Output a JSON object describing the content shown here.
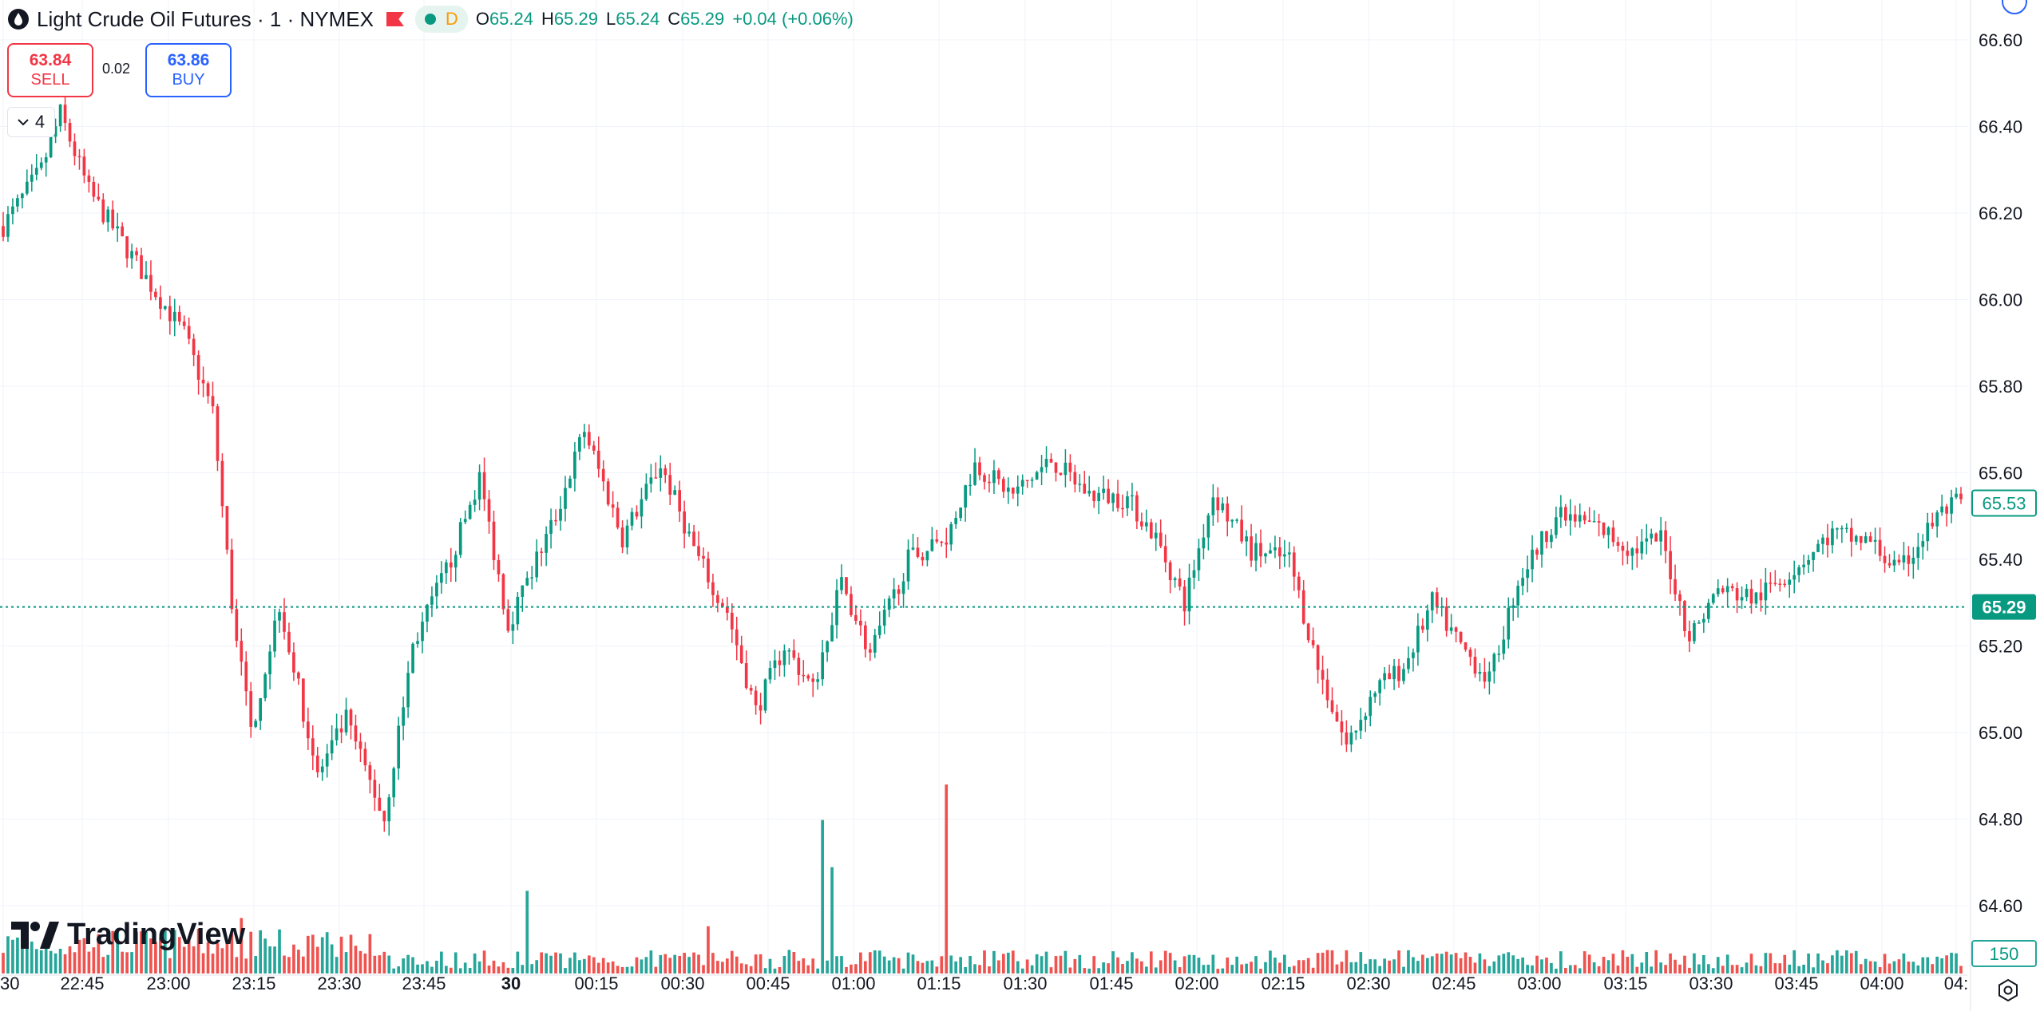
{
  "header": {
    "symbol_title": "Light Crude Oil Futures · 1 · NYMEX",
    "interval_badge": "D",
    "ohlc": {
      "o_label": "O",
      "o_value": "65.24",
      "h_label": "H",
      "h_value": "65.29",
      "l_label": "L",
      "l_value": "65.24",
      "c_label": "C",
      "c_value": "65.29",
      "change": "+0.04 (+0.06%)"
    }
  },
  "trade": {
    "sell_price": "63.84",
    "sell_label": "SELL",
    "spread": "0.02",
    "buy_price": "63.86",
    "buy_label": "BUY"
  },
  "indicators_toggle": {
    "count": "4"
  },
  "branding": {
    "logo_text": "TradingView"
  },
  "colors": {
    "up": "#089981",
    "down": "#f23645",
    "volume_up": "#26a69a",
    "volume_down": "#ef5350",
    "grid": "#f0f3fa",
    "accent": "#2962ff"
  },
  "chart_data": {
    "type": "candlestick",
    "symbol": "Light Crude Oil Futures",
    "interval": "1",
    "exchange": "NYMEX",
    "price_axis": {
      "ticks": [
        "66.60",
        "66.40",
        "66.20",
        "66.00",
        "65.80",
        "65.60",
        "65.40",
        "65.20",
        "65.00",
        "64.80",
        "64.60"
      ],
      "range": [
        64.55,
        66.65
      ]
    },
    "time_axis": {
      "ticks": [
        "30",
        "22:45",
        "23:00",
        "23:15",
        "23:30",
        "23:45",
        "30",
        "00:15",
        "00:30",
        "00:45",
        "01:00",
        "01:15",
        "01:30",
        "01:45",
        "02:00",
        "02:15",
        "02:30",
        "02:45",
        "03:00",
        "03:15",
        "03:30",
        "03:45",
        "04:00",
        "04:"
      ]
    },
    "last_price": {
      "label": "65.29",
      "value": 65.29
    },
    "prev_price_marker": {
      "label": "65.53",
      "value": 65.53
    },
    "volume_marker": {
      "label": "150",
      "value": 150
    },
    "grid": true,
    "keypoints_close": [
      {
        "t": 0,
        "p": 66.17
      },
      {
        "t": 8,
        "p": 66.3
      },
      {
        "t": 12,
        "p": 66.43
      },
      {
        "t": 18,
        "p": 66.25
      },
      {
        "t": 30,
        "p": 66.05
      },
      {
        "t": 38,
        "p": 65.92
      },
      {
        "t": 44,
        "p": 65.74
      },
      {
        "t": 48,
        "p": 65.3
      },
      {
        "t": 52,
        "p": 65.0
      },
      {
        "t": 58,
        "p": 65.3
      },
      {
        "t": 66,
        "p": 64.9
      },
      {
        "t": 72,
        "p": 65.03
      },
      {
        "t": 80,
        "p": 64.8
      },
      {
        "t": 86,
        "p": 65.2
      },
      {
        "t": 94,
        "p": 65.4
      },
      {
        "t": 100,
        "p": 65.59
      },
      {
        "t": 106,
        "p": 65.25
      },
      {
        "t": 116,
        "p": 65.5
      },
      {
        "t": 122,
        "p": 65.7
      },
      {
        "t": 130,
        "p": 65.45
      },
      {
        "t": 138,
        "p": 65.62
      },
      {
        "t": 146,
        "p": 65.4
      },
      {
        "t": 152,
        "p": 65.28
      },
      {
        "t": 158,
        "p": 65.05
      },
      {
        "t": 164,
        "p": 65.2
      },
      {
        "t": 170,
        "p": 65.1
      },
      {
        "t": 176,
        "p": 65.35
      },
      {
        "t": 182,
        "p": 65.18
      },
      {
        "t": 190,
        "p": 65.4
      },
      {
        "t": 198,
        "p": 65.45
      },
      {
        "t": 204,
        "p": 65.62
      },
      {
        "t": 212,
        "p": 65.55
      },
      {
        "t": 220,
        "p": 65.63
      },
      {
        "t": 228,
        "p": 65.55
      },
      {
        "t": 236,
        "p": 65.54
      },
      {
        "t": 242,
        "p": 65.45
      },
      {
        "t": 248,
        "p": 65.3
      },
      {
        "t": 254,
        "p": 65.55
      },
      {
        "t": 262,
        "p": 65.42
      },
      {
        "t": 270,
        "p": 65.4
      },
      {
        "t": 276,
        "p": 65.15
      },
      {
        "t": 282,
        "p": 64.97
      },
      {
        "t": 288,
        "p": 65.1
      },
      {
        "t": 294,
        "p": 65.15
      },
      {
        "t": 300,
        "p": 65.3
      },
      {
        "t": 306,
        "p": 65.2
      },
      {
        "t": 312,
        "p": 65.12
      },
      {
        "t": 318,
        "p": 65.35
      },
      {
        "t": 326,
        "p": 65.5
      },
      {
        "t": 334,
        "p": 65.48
      },
      {
        "t": 342,
        "p": 65.42
      },
      {
        "t": 348,
        "p": 65.45
      },
      {
        "t": 354,
        "p": 65.22
      },
      {
        "t": 360,
        "p": 65.33
      },
      {
        "t": 368,
        "p": 65.31
      },
      {
        "t": 376,
        "p": 65.38
      },
      {
        "t": 384,
        "p": 65.46
      },
      {
        "t": 392,
        "p": 65.44
      },
      {
        "t": 398,
        "p": 65.37
      },
      {
        "t": 406,
        "p": 65.5
      },
      {
        "t": 410,
        "p": 65.53
      }
    ],
    "volume_spikes": [
      {
        "t": 198,
        "v": 1600
      },
      {
        "t": 174,
        "v": 900
      },
      {
        "t": 172,
        "v": 1300
      },
      {
        "t": 110,
        "v": 700
      },
      {
        "t": 148,
        "v": 400
      },
      {
        "t": 50,
        "v": 470
      },
      {
        "t": 48,
        "v": 340
      }
    ]
  }
}
